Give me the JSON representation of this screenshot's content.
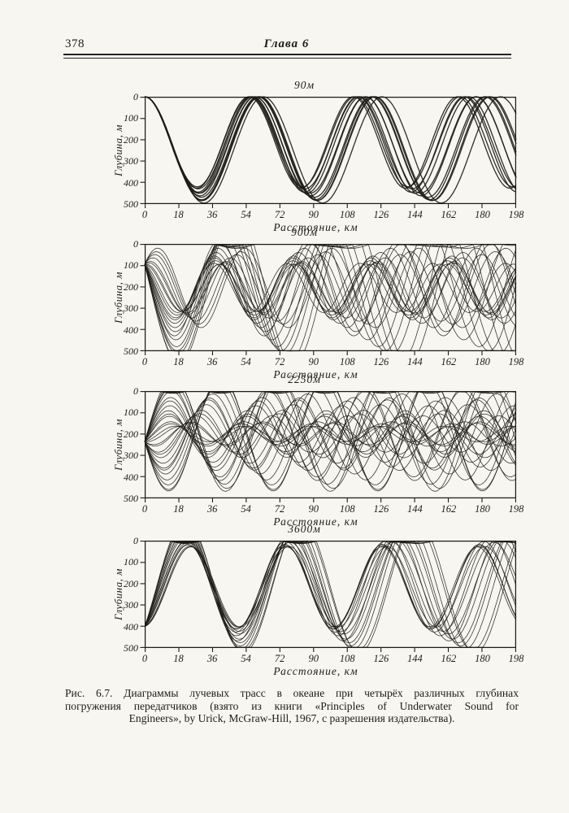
{
  "colors": {
    "ink": "#1d1c18",
    "paper": "#f7f6f1"
  },
  "page": {
    "number": "378",
    "chapter": "Глава 6"
  },
  "caption": {
    "line1": "Рис. 6.7. Диаграммы лучевых трасс в океане при четырёх различных глубинах",
    "line2": "погружения передатчиков (взято из книги «Principles of Underwater Sound for",
    "line3": "Engineers», by Urick, McGraw-Hill, 1967, с разрешения издательства)."
  },
  "chart_data": [
    {
      "type": "line",
      "title": "90м",
      "source_depth_m": 90,
      "description": "Ray-trace fan for a shallow (90 m) source: a tight bundle of rays cycling between the surface and ~420–495 m with a ~55–63 km cycle length; surface convergence zones near 0, 60, 120, 180 km.",
      "xlabel": "Расстояние, км",
      "ylabel": "Глубина, м",
      "xlim": [
        0,
        198
      ],
      "ylim": [
        0,
        500
      ],
      "y_inverted": true,
      "grid": false,
      "legend": false,
      "xticks": [
        0,
        18,
        36,
        54,
        72,
        90,
        108,
        126,
        144,
        162,
        180,
        198
      ],
      "yticks": [
        0,
        100,
        200,
        300,
        400,
        500
      ],
      "rays": {
        "model": "surface-duct",
        "count": 12,
        "source_depth": 0,
        "depth_max": [
          420,
          495
        ],
        "period_km": [
          55.5,
          62.5
        ]
      }
    },
    {
      "type": "line",
      "title": "900м",
      "source_depth_m": 900,
      "description": "Ray fan from a source near the sound-channel axis (plotted at ~95 on the depth scale); rays of many amplitudes oscillate about the channel axis (~200), shallow rays with short cycles, deep rays reaching ~500 with ~60 km cycles.",
      "xlabel": "Расстояние, км",
      "ylabel": "Глубина, м",
      "xlim": [
        0,
        198
      ],
      "ylim": [
        0,
        500
      ],
      "y_inverted": true,
      "grid": false,
      "legend": false,
      "xticks": [
        0,
        18,
        36,
        54,
        72,
        90,
        108,
        126,
        144,
        162,
        180,
        198
      ],
      "yticks": [
        0,
        100,
        200,
        300,
        400,
        500
      ],
      "rays": {
        "model": "sofar",
        "count": 22,
        "source_depth": 95,
        "axis_depth": 205,
        "slope_coeff": [
          -150,
          340
        ],
        "period_base": 30,
        "period_per_amp": 0.085
      }
    },
    {
      "type": "line",
      "title": "2250м",
      "source_depth_m": 2250,
      "description": "Dense ray fan from a mid-depth source (plotted at ~235); rays leave both upward and downward, crossing chaotically about the channel axis (~200), crests near the surface and troughs near 500.",
      "xlabel": "Расстояние, км",
      "ylabel": "Глубина, м",
      "xlim": [
        0,
        198
      ],
      "ylim": [
        0,
        500
      ],
      "y_inverted": true,
      "grid": false,
      "legend": false,
      "xticks": [
        0,
        18,
        36,
        54,
        72,
        90,
        108,
        126,
        144,
        162,
        180,
        198
      ],
      "yticks": [
        0,
        100,
        200,
        300,
        400,
        500
      ],
      "rays": {
        "model": "sofar",
        "count": 28,
        "source_depth": 235,
        "axis_depth": 200,
        "slope_coeff": [
          -270,
          270
        ],
        "period_base": 33,
        "period_per_amp": 0.09
      }
    },
    {
      "type": "line",
      "title": "3600м",
      "source_depth_m": 3600,
      "description": "Ray fan from a deep source (plotted at ~400); all rays rise toward the surface, flattening near it in a crossing lattice, then dive back toward 380–500 m with ~55–65 km cycle lengths.",
      "xlabel": "Расстояние, км",
      "ylabel": "Глубина, м",
      "xlim": [
        0,
        198
      ],
      "ylim": [
        0,
        500
      ],
      "y_inverted": true,
      "grid": false,
      "legend": false,
      "xticks": [
        0,
        18,
        36,
        54,
        72,
        90,
        108,
        126,
        144,
        162,
        180,
        198
      ],
      "yticks": [
        0,
        100,
        200,
        300,
        400,
        500
      ],
      "rays": {
        "model": "sofar",
        "count": 16,
        "source_depth": 400,
        "axis_depth": 215,
        "slope_coeff": [
          -250,
          -12
        ],
        "period_base": 36,
        "period_per_amp": 0.085
      }
    }
  ]
}
